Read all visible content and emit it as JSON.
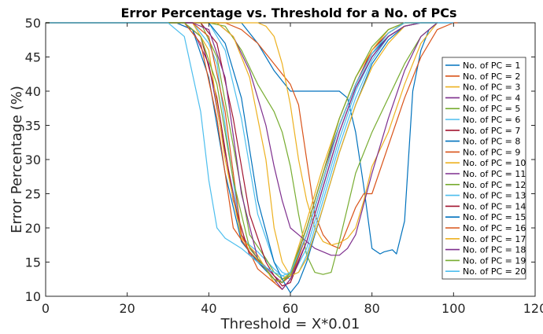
{
  "chart_data": {
    "type": "line",
    "title": "Error Percentage vs. Threshold for a No. of PCs",
    "xlabel": "Threshold = X*0.01",
    "ylabel": "Error Percentage (%)",
    "xlim": [
      0,
      120
    ],
    "ylim": [
      10,
      50
    ],
    "xticks": [
      0,
      20,
      40,
      60,
      80,
      100,
      120
    ],
    "yticks": [
      10,
      15,
      20,
      25,
      30,
      35,
      40,
      45,
      50
    ],
    "grid": false,
    "legend_position": "right",
    "series": [
      {
        "name": "No. of PC = 1",
        "color": "#0072bd",
        "x": [
          0,
          48,
          52,
          56,
          60,
          64,
          68,
          72,
          74,
          76,
          78,
          80,
          82,
          83,
          85,
          86,
          88,
          90,
          92,
          94,
          96,
          101
        ],
        "y": [
          50,
          50,
          47,
          43,
          40,
          40,
          40,
          40,
          39,
          34,
          26,
          17,
          16.2,
          16.5,
          16.8,
          16.2,
          21,
          40,
          46,
          49,
          50,
          50
        ]
      },
      {
        "name": "No. of PC = 2",
        "color": "#d95319",
        "x": [
          0,
          44,
          48,
          52,
          56,
          60,
          62,
          64,
          66,
          68,
          70,
          72,
          74,
          76,
          78,
          80,
          84,
          88,
          92,
          96,
          100,
          101
        ],
        "y": [
          50,
          50,
          49,
          47,
          44,
          41,
          38,
          30,
          22,
          19,
          17.5,
          17,
          20,
          23,
          25,
          25,
          32,
          39,
          45,
          49,
          50,
          50
        ]
      },
      {
        "name": "No. of PC = 3",
        "color": "#edb120",
        "x": [
          0,
          48,
          52,
          54,
          56,
          58,
          60,
          62,
          64,
          66,
          68,
          70,
          72,
          74,
          76,
          78,
          80,
          84,
          88,
          92,
          96,
          100
        ],
        "y": [
          50,
          50,
          50,
          49.5,
          48,
          44,
          38,
          30,
          24,
          20,
          18,
          17.5,
          17.8,
          18.5,
          20,
          24,
          29,
          34,
          41,
          47,
          50,
          50
        ]
      },
      {
        "name": "No. of PC = 4",
        "color": "#7e2f8e",
        "x": [
          0,
          32,
          36,
          40,
          44,
          48,
          52,
          56,
          58,
          60,
          64,
          68,
          72,
          76,
          80,
          84,
          88,
          92,
          96,
          100
        ],
        "y": [
          50,
          50,
          49,
          44,
          31,
          19,
          15.5,
          13,
          12,
          13.5,
          20,
          28,
          35,
          41,
          45.5,
          48,
          49.5,
          50,
          50,
          50
        ]
      },
      {
        "name": "No. of PC = 5",
        "color": "#77ac30",
        "x": [
          0,
          40,
          44,
          48,
          52,
          56,
          58,
          60,
          62,
          64,
          66,
          68,
          70,
          72,
          74,
          76,
          80,
          84,
          88,
          92,
          96
        ],
        "y": [
          50,
          50,
          49.5,
          46,
          41,
          37,
          34,
          29,
          22,
          16,
          13.5,
          13.2,
          13.5,
          18,
          23,
          28,
          34,
          39,
          44,
          48,
          50
        ]
      },
      {
        "name": "No. of PC = 6",
        "color": "#4dbeee",
        "x": [
          0,
          36,
          40,
          42,
          44,
          48,
          52,
          56,
          58,
          60,
          64,
          68,
          72,
          76,
          80,
          84,
          88,
          92,
          96,
          100
        ],
        "y": [
          50,
          50,
          47,
          44,
          35,
          18.5,
          16.5,
          14,
          13,
          12.5,
          17,
          25,
          33,
          40,
          45,
          48,
          49.5,
          50,
          50,
          50
        ]
      },
      {
        "name": "No. of PC = 7",
        "color": "#a2142f",
        "x": [
          0,
          34,
          38,
          42,
          46,
          50,
          54,
          56,
          58,
          60,
          64,
          68,
          72,
          76,
          80,
          84,
          88,
          92,
          96
        ],
        "y": [
          50,
          50,
          48,
          39,
          24,
          16,
          14,
          12.5,
          12,
          13,
          19,
          27,
          35,
          41,
          46,
          48.5,
          50,
          50,
          50
        ]
      },
      {
        "name": "No. of PC = 8",
        "color": "#0072bd",
        "x": [
          0,
          32,
          36,
          40,
          44,
          48,
          52,
          56,
          58,
          60,
          64,
          68,
          72,
          76,
          80,
          84,
          88,
          92,
          96
        ],
        "y": [
          50,
          50,
          49,
          42,
          28,
          18,
          15,
          12.5,
          12,
          13,
          19,
          27,
          35,
          41,
          45.5,
          48,
          49.5,
          50,
          50
        ]
      },
      {
        "name": "No. of PC = 9",
        "color": "#d95319",
        "x": [
          0,
          34,
          38,
          42,
          46,
          50,
          54,
          56,
          58,
          60,
          64,
          68,
          72,
          76,
          80,
          84,
          88,
          92,
          96
        ],
        "y": [
          50,
          50,
          47,
          36,
          20,
          16.5,
          14,
          12.5,
          12,
          13,
          20,
          28,
          36,
          42,
          46,
          49,
          50,
          50,
          50
        ]
      },
      {
        "name": "No. of PC = 10",
        "color": "#edb120",
        "x": [
          0,
          36,
          40,
          44,
          48,
          52,
          54,
          56,
          58,
          60,
          64,
          68,
          72,
          76,
          80,
          84,
          88,
          92,
          96
        ],
        "y": [
          50,
          50,
          46,
          30,
          18.5,
          16,
          14,
          12,
          12.5,
          13.5,
          21,
          29,
          36,
          42,
          46,
          49,
          50,
          50,
          50
        ]
      },
      {
        "name": "No. of PC = 11",
        "color": "#7e2f8e",
        "x": [
          0,
          42,
          46,
          50,
          54,
          56,
          58,
          60,
          62,
          64,
          66,
          68,
          70,
          72,
          74,
          76,
          80,
          84,
          88,
          92,
          96
        ],
        "y": [
          50,
          50,
          48,
          43,
          35,
          29,
          24,
          20,
          19,
          18,
          17,
          16.5,
          16,
          16,
          17,
          19,
          28,
          36,
          43,
          48,
          50
        ]
      },
      {
        "name": "No. of PC = 12",
        "color": "#77ac30",
        "x": [
          0,
          38,
          42,
          46,
          50,
          54,
          56,
          58,
          60,
          64,
          68,
          72,
          76,
          80,
          84,
          88,
          92,
          96
        ],
        "y": [
          50,
          50,
          45,
          32,
          19,
          15.5,
          13.5,
          12.5,
          13,
          19,
          27,
          35,
          41,
          45.5,
          48.5,
          50,
          50,
          50
        ]
      },
      {
        "name": "No. of PC = 13",
        "color": "#4dbeee",
        "x": [
          0,
          40,
          44,
          48,
          52,
          56,
          58,
          60,
          62,
          64,
          68,
          72,
          76,
          80,
          84,
          88,
          92,
          96
        ],
        "y": [
          50,
          50,
          46,
          36,
          22,
          15,
          13.5,
          13,
          13.5,
          16,
          24,
          32,
          39,
          44.5,
          48,
          49.5,
          50,
          50
        ]
      },
      {
        "name": "No. of PC = 14",
        "color": "#a2142f",
        "x": [
          0,
          38,
          42,
          46,
          50,
          54,
          56,
          58,
          60,
          64,
          68,
          72,
          76,
          80,
          84,
          88,
          92,
          96
        ],
        "y": [
          50,
          50,
          47,
          36,
          22,
          15,
          13,
          11.5,
          12,
          18,
          26,
          34,
          40.5,
          45,
          48,
          49.5,
          50,
          50
        ]
      },
      {
        "name": "No. of PC = 15",
        "color": "#0072bd",
        "x": [
          0,
          40,
          44,
          48,
          52,
          56,
          58,
          60,
          62,
          64,
          68,
          72,
          76,
          80,
          84,
          88,
          92,
          96
        ],
        "y": [
          50,
          50,
          47,
          39,
          24,
          15,
          12.5,
          10.5,
          12,
          15,
          23,
          31,
          38,
          44,
          47.5,
          49.5,
          50,
          50
        ]
      },
      {
        "name": "No. of PC = 16",
        "color": "#d95319",
        "x": [
          0,
          36,
          40,
          44,
          48,
          52,
          56,
          58,
          60,
          64,
          68,
          72,
          76,
          80,
          84,
          88,
          92,
          96
        ],
        "y": [
          50,
          50,
          48,
          37,
          19,
          14,
          12,
          11,
          12.5,
          19,
          27,
          35,
          41,
          45.5,
          48.5,
          50,
          50,
          50
        ]
      },
      {
        "name": "No. of PC = 17",
        "color": "#edb120",
        "x": [
          0,
          42,
          46,
          50,
          54,
          56,
          58,
          60,
          62,
          64,
          68,
          72,
          76,
          80,
          84,
          88,
          92,
          96
        ],
        "y": [
          50,
          50,
          48,
          42,
          30,
          20,
          15,
          13,
          13.5,
          15.5,
          23,
          31,
          38,
          43.5,
          47,
          49.5,
          50,
          50
        ]
      },
      {
        "name": "No. of PC = 18",
        "color": "#7e2f8e",
        "x": [
          0,
          36,
          40,
          44,
          48,
          52,
          56,
          58,
          60,
          64,
          68,
          72,
          76,
          80,
          84,
          88,
          92,
          96
        ],
        "y": [
          50,
          50,
          49,
          42,
          25,
          15.5,
          12.5,
          11,
          12.5,
          18,
          26,
          34,
          40.5,
          45,
          48,
          49.5,
          50,
          50
        ]
      },
      {
        "name": "No. of PC = 19",
        "color": "#77ac30",
        "x": [
          0,
          34,
          38,
          42,
          46,
          50,
          54,
          56,
          58,
          60,
          64,
          68,
          72,
          76,
          80,
          84,
          88,
          92,
          96
        ],
        "y": [
          50,
          50,
          48,
          41,
          27,
          17,
          14,
          12.5,
          12,
          13.5,
          20,
          28,
          36,
          42,
          46.5,
          49,
          50,
          50,
          50
        ]
      },
      {
        "name": "No. of PC = 20",
        "color": "#4dbeee",
        "x": [
          0,
          30,
          34,
          38,
          40,
          42,
          44,
          48,
          52,
          56,
          58,
          60,
          64,
          68,
          72,
          76,
          80,
          84,
          88,
          92,
          96
        ],
        "y": [
          50,
          50,
          48,
          37,
          27,
          20,
          18.5,
          17,
          15,
          13.5,
          13,
          13.5,
          19,
          27,
          35,
          41,
          45.5,
          48.5,
          50,
          50,
          50
        ]
      }
    ]
  }
}
